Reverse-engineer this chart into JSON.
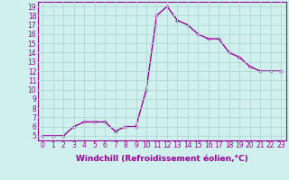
{
  "x": [
    0,
    1,
    2,
    3,
    4,
    5,
    6,
    7,
    8,
    9,
    10,
    11,
    12,
    13,
    14,
    15,
    16,
    17,
    18,
    19,
    20,
    21,
    22,
    23
  ],
  "y": [
    5,
    5,
    5,
    6,
    6.5,
    6.5,
    6.5,
    5.5,
    6,
    6,
    10,
    18,
    19,
    17.5,
    17,
    16,
    15.5,
    15.5,
    14,
    13.5,
    12.5,
    12,
    12,
    12
  ],
  "line_color": "#990099",
  "marker": "+",
  "marker_size": 3,
  "marker_edge_width": 1.0,
  "line_width": 1.0,
  "xlabel": "Windchill (Refroidissement éolien,°C)",
  "xlabel_fontsize": 6.5,
  "ylabel_ticks": [
    5,
    6,
    7,
    8,
    9,
    10,
    11,
    12,
    13,
    14,
    15,
    16,
    17,
    18,
    19
  ],
  "xtick_labels": [
    "0",
    "1",
    "2",
    "3",
    "4",
    "5",
    "6",
    "7",
    "8",
    "9",
    "10",
    "11",
    "12",
    "13",
    "14",
    "15",
    "16",
    "17",
    "18",
    "19",
    "20",
    "21",
    "22",
    "23"
  ],
  "xlim": [
    -0.5,
    23.5
  ],
  "ylim": [
    4.5,
    19.5
  ],
  "bg_color": "#cff0ec",
  "grid_color": "#b0d8d4",
  "tick_color": "#990099",
  "tick_fontsize": 5.5,
  "spine_color": "#990099"
}
